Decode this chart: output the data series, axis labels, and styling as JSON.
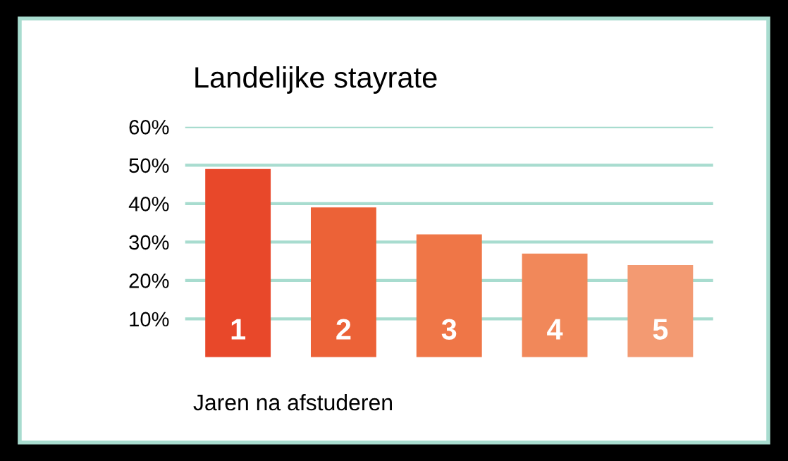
{
  "chart_data": {
    "type": "bar",
    "title": "Landelijke stayrate",
    "xlabel": "Jaren na afstuderen",
    "categories": [
      "1",
      "2",
      "3",
      "4",
      "5"
    ],
    "values": [
      49,
      39,
      32,
      27,
      24
    ],
    "colors": [
      "#e8482a",
      "#ec6237",
      "#ef7647",
      "#f1885a",
      "#f39a72"
    ],
    "ylim": [
      0,
      60
    ],
    "yticks": [
      {
        "value": 10,
        "label": "10%"
      },
      {
        "value": 20,
        "label": "20%"
      },
      {
        "value": 30,
        "label": "30%"
      },
      {
        "value": 40,
        "label": "40%"
      },
      {
        "value": 50,
        "label": "50%"
      },
      {
        "value": 60,
        "label": "60%"
      }
    ],
    "grid": "y"
  }
}
